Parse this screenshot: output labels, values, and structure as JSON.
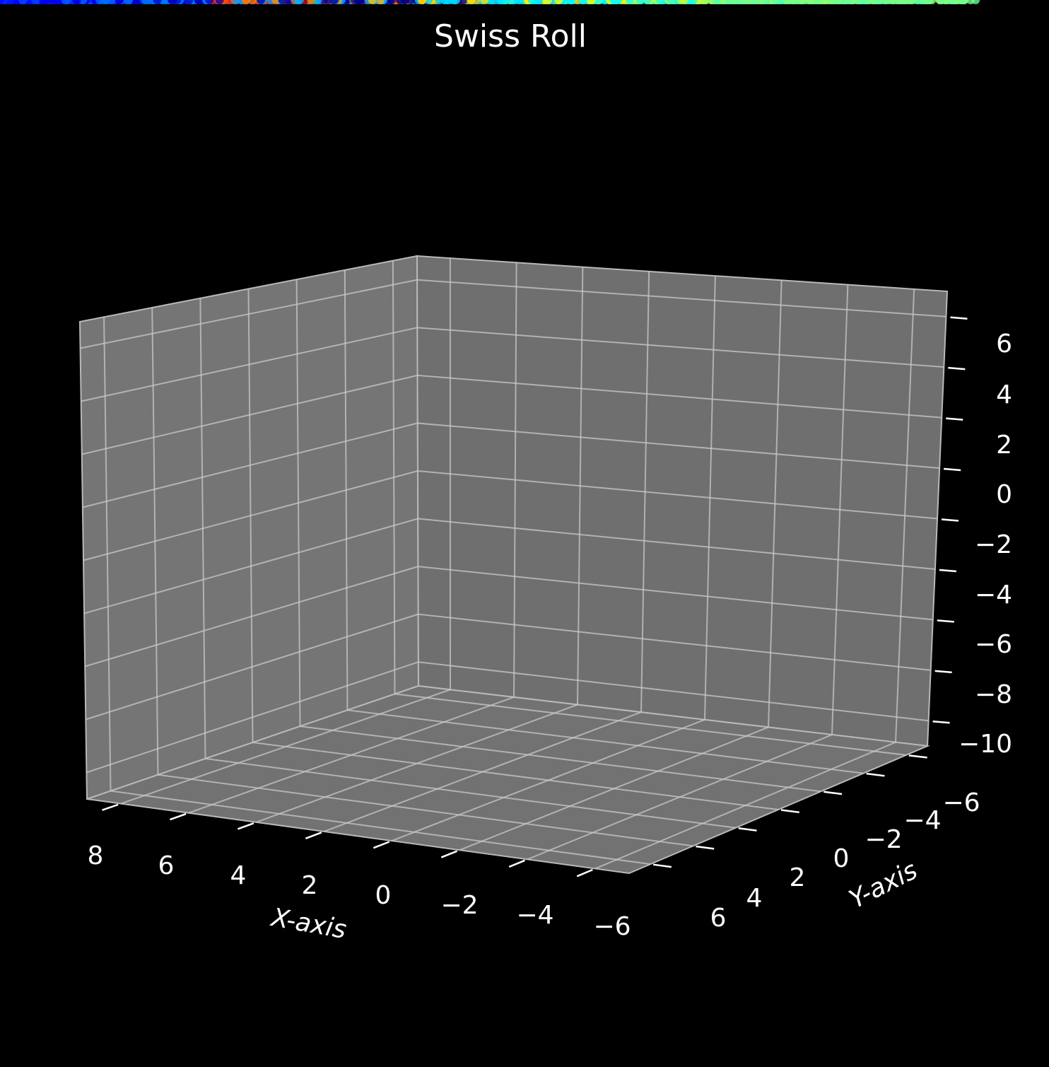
{
  "chart_data": {
    "type": "scatter",
    "projection": "3d",
    "title": "Swiss Roll",
    "xlabel": "X-axis",
    "ylabel": "Y-axis",
    "zlabel": "",
    "x_ticks": [
      "8",
      "6",
      "4",
      "2",
      "0",
      "−2",
      "−4",
      "−6"
    ],
    "y_ticks": [
      "6",
      "4",
      "2",
      "0",
      "−2",
      "−4",
      "−6"
    ],
    "z_ticks": [
      "6",
      "4",
      "2",
      "0",
      "−2",
      "−4",
      "−6",
      "−8",
      "−10"
    ],
    "xlim": [
      -7,
      9
    ],
    "ylim": [
      -7,
      7
    ],
    "zlim": [
      -11,
      7
    ],
    "colormap": "jet",
    "background_color": "#000000",
    "pane_color": "#777777",
    "grid": true,
    "n_points": 1500,
    "generator": "swiss roll: t in [1.5π, 4.5π], x = t·cos t, z = t·sin t, y uniform in [-6, 6]"
  }
}
